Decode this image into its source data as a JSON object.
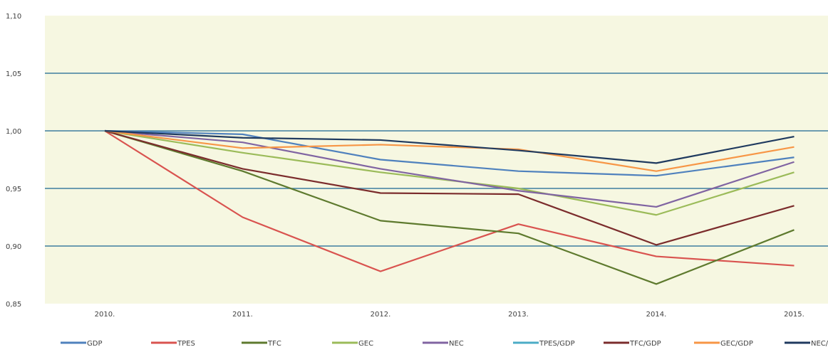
{
  "chart_data": {
    "type": "line",
    "categories": [
      "2010.",
      "2011.",
      "2012.",
      "2013.",
      "2014.",
      "2015."
    ],
    "ylim": [
      0.85,
      1.1
    ],
    "y_ticks": [
      "0,85",
      "0,90",
      "0,95",
      "1,00",
      "1,05",
      "1,10"
    ],
    "grid": "horizontal",
    "legend_position": "bottom",
    "plot_background": "#f6f7e1",
    "grid_color": "#3f7f9f",
    "series": [
      {
        "name": "GDP",
        "color": "#4f81bd",
        "values": [
          1.0,
          0.997,
          0.975,
          0.965,
          0.961,
          0.977
        ]
      },
      {
        "name": "TPES",
        "color": "#d9534f",
        "values": [
          1.0,
          0.925,
          0.878,
          0.919,
          0.891,
          0.883
        ]
      },
      {
        "name": "TFC",
        "color": "#5e7a2e",
        "values": [
          1.0,
          0.965,
          0.922,
          0.911,
          0.867,
          0.914
        ]
      },
      {
        "name": "GEC",
        "color": "#9bbb59",
        "values": [
          1.0,
          0.981,
          0.964,
          0.95,
          0.927,
          0.964
        ]
      },
      {
        "name": "NEC",
        "color": "#8064a2",
        "values": [
          1.0,
          0.99,
          0.967,
          0.948,
          0.934,
          0.973
        ]
      },
      {
        "name": "TPES/GDP",
        "color": "#4bacc6",
        "values": null
      },
      {
        "name": "TFC/GDP",
        "color": "#7b2c2c",
        "values": [
          1.0,
          0.967,
          0.946,
          0.945,
          0.901,
          0.935
        ]
      },
      {
        "name": "GEC/GDP",
        "color": "#f79646",
        "values": [
          1.0,
          0.985,
          0.988,
          0.984,
          0.965,
          0.986
        ]
      },
      {
        "name": "NEC/GDP",
        "color": "#1f3a5f",
        "values": [
          1.0,
          0.994,
          0.992,
          0.983,
          0.972,
          0.995
        ]
      }
    ]
  }
}
